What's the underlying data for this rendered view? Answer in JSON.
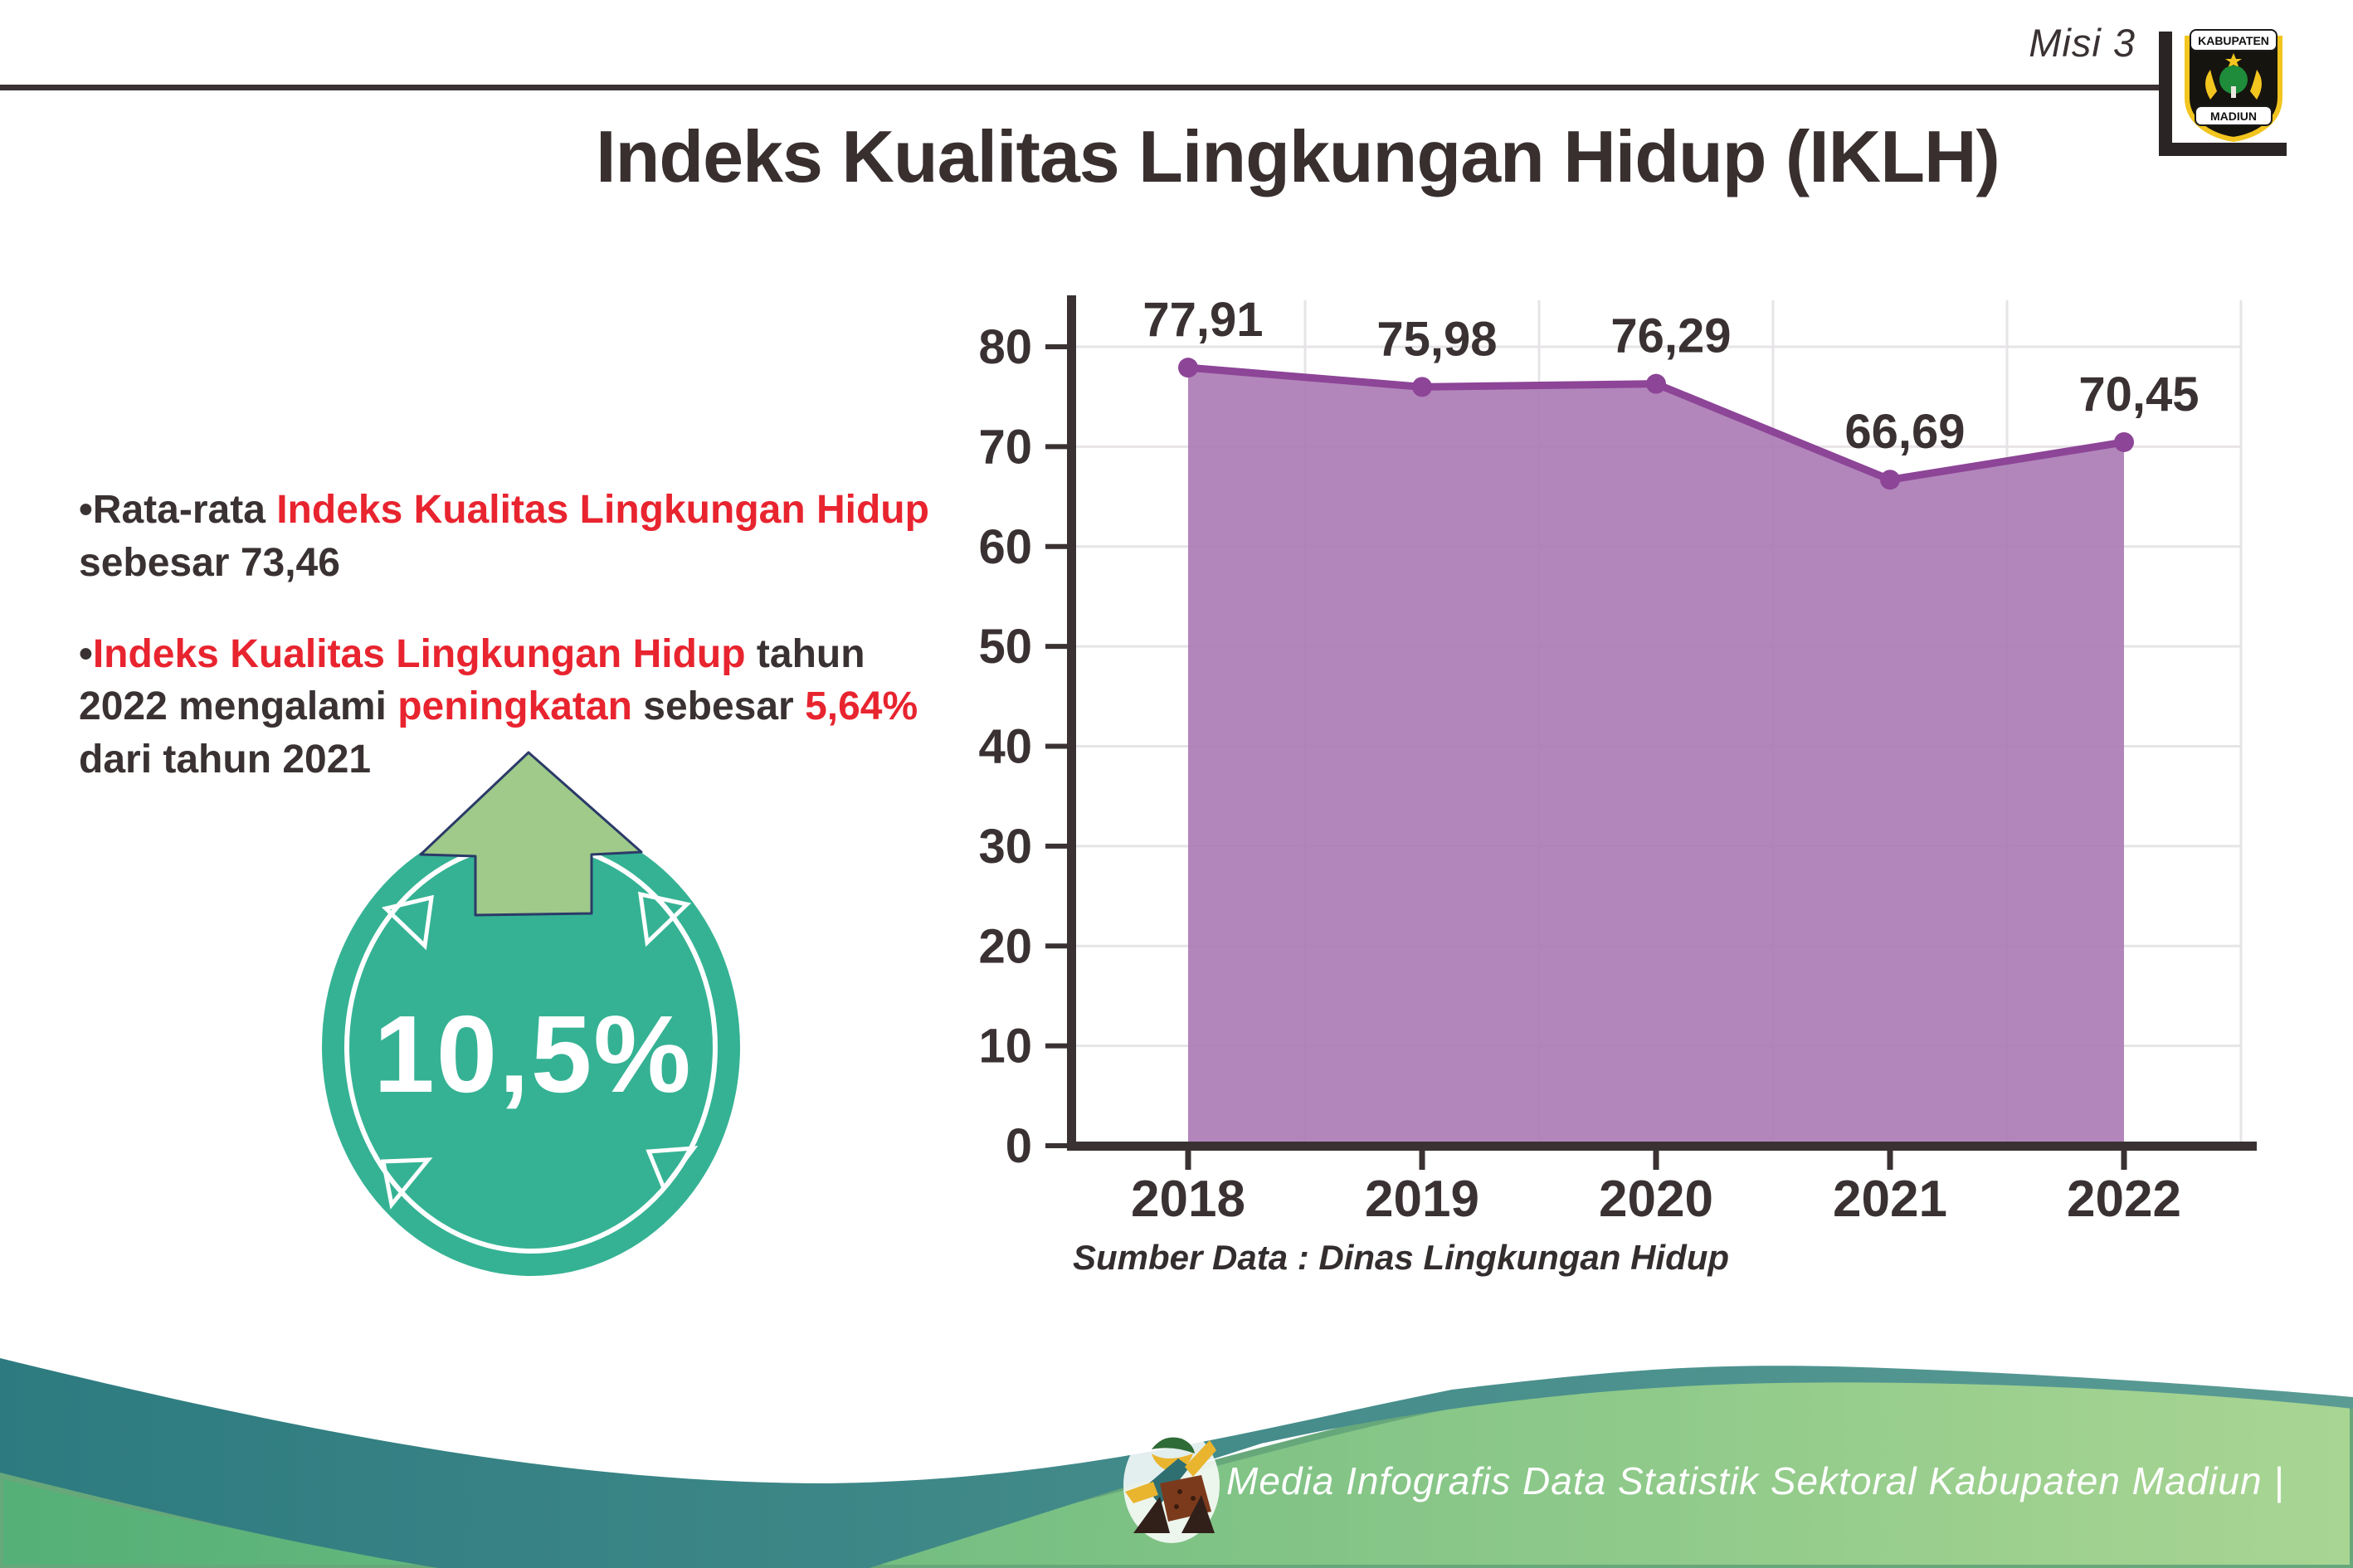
{
  "header": {
    "misi_label": "Misi 3",
    "title": "Indeks Kualitas Lingkungan Hidup (IKLH)",
    "logo_top_text": "KABUPATEN",
    "logo_bottom_text": "MADIUN"
  },
  "bullets": {
    "b1_s1": "•Rata-rata ",
    "b1_s2": "Indeks Kualitas Lingkungan Hidup",
    "b1_s3": " sebesar 73,46",
    "b2_s1": "•",
    "b2_s2": "Indeks Kualitas Lingkungan Hidup",
    "b2_s3": " tahun 2022 mengalami ",
    "b2_s4": "peningkatan",
    "b2_s5": " sebesar ",
    "b2_s6": "5,64%",
    "b2_s7": " dari tahun 2021"
  },
  "badge": {
    "value": "10,5%",
    "circle_color": "#35b294",
    "arrow_color": "#9fca8a"
  },
  "chart_data": {
    "type": "area",
    "categories": [
      "2018",
      "2019",
      "2020",
      "2021",
      "2022"
    ],
    "values": [
      77.91,
      75.98,
      76.29,
      66.69,
      70.45
    ],
    "value_labels": [
      "77,91",
      "75,98",
      "76,29",
      "66,69",
      "70,45"
    ],
    "ylim": [
      0,
      80
    ],
    "ytick_step": 10,
    "grid": true,
    "legend": "none",
    "line_color": "#8d4597",
    "fill_color": "#ab7cb5",
    "label_color": "#3a3132",
    "axis_color": "#3a3232",
    "source_note": "Sumber Data : Dinas Lingkungan Hidup"
  },
  "footer": {
    "credit": "Media Infografis Data Statistik Sektoral Kabupaten Madiun |",
    "teal_color": "#2d7b80",
    "green_color": "#54b077"
  }
}
